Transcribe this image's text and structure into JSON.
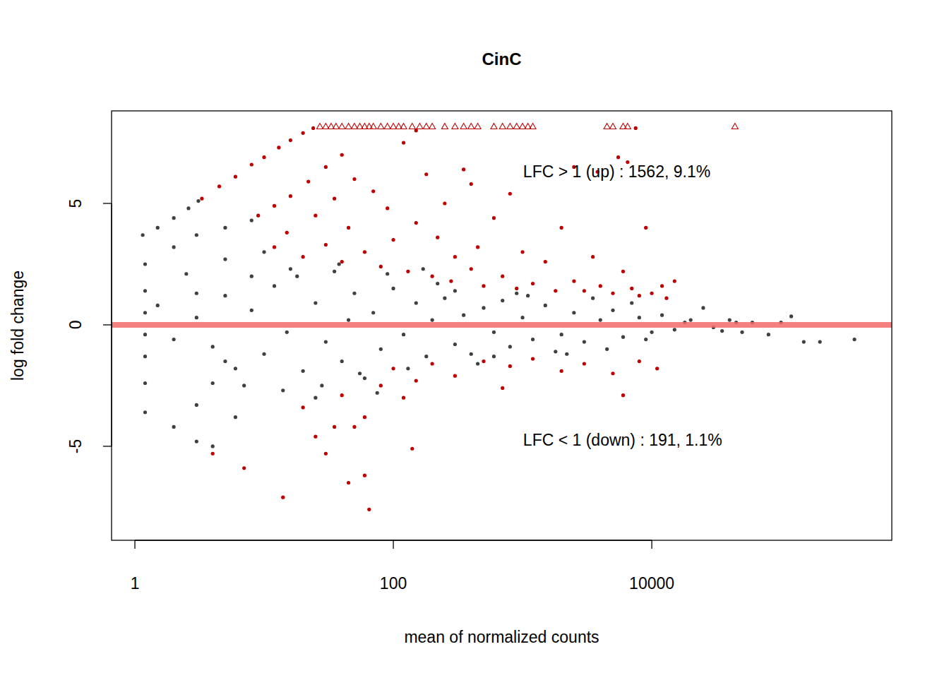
{
  "chart_data": {
    "type": "scatter",
    "title": "CinC",
    "x_label": "mean of normalized counts",
    "y_label": "log fold change",
    "log": "x",
    "xlim": [
      0.66,
      720000
    ],
    "ylim": [
      -8.87,
      8.81
    ],
    "xticks": [
      1,
      100,
      10000
    ],
    "yticks": [
      -5,
      0,
      5
    ],
    "reference_line": {
      "value": 0,
      "color": "#f26a6a"
    },
    "annotations": [
      {
        "text": "LFC > 1 (up) : 1562, 9.1%",
        "x": 1010,
        "y": 6.3
      },
      {
        "text": "LFC < 1 (down) : 191, 1.1%",
        "x": 1010,
        "y": -4.75
      }
    ],
    "series": [
      {
        "color": "#404040",
        "marker": "circle",
        "x": [
          1.15,
          1.5,
          2.0,
          2.6,
          3.1,
          1.2,
          2.0,
          3.0,
          5.0,
          8.0,
          1.2,
          2.5,
          5,
          10,
          1.2,
          3,
          8,
          1.2,
          2.0,
          3.0,
          4.0,
          1.2,
          3,
          6,
          1.2,
          4,
          1.2,
          5,
          1.5,
          2,
          3,
          4,
          5,
          6,
          8,
          10,
          12,
          15,
          18,
          20,
          25,
          30,
          35,
          40,
          45,
          50,
          60,
          70,
          80,
          100,
          120,
          150,
          180,
          200,
          250,
          300,
          350,
          400,
          500,
          600,
          700,
          800,
          1000,
          1200,
          1500,
          2000,
          2500,
          3000,
          4000,
          5000,
          6000,
          8000,
          10000,
          12000,
          15000,
          20000,
          25000,
          30000,
          40000,
          50000,
          60000,
          80000,
          120000,
          200000,
          370000,
          150000,
          100000,
          45000,
          35000,
          18000,
          9000,
          7000,
          3500,
          1800,
          900,
          450,
          220,
          130,
          90,
          55,
          28,
          16,
          14,
          7,
          25,
          300,
          600,
          1100,
          2200,
          4500,
          170,
          75,
          38
        ],
        "values": [
          3.7,
          4.0,
          4.4,
          4.8,
          5.1,
          2.5,
          3.2,
          3.7,
          4.0,
          4.3,
          1.4,
          2.1,
          2.7,
          3.0,
          0.5,
          1.3,
          2.0,
          -3.6,
          -4.2,
          -4.8,
          -5.0,
          -2.4,
          -3.3,
          -3.8,
          -1.3,
          -2.4,
          -0.4,
          -1.5,
          0.8,
          -0.6,
          0.3,
          -0.9,
          1.2,
          -1.8,
          0.6,
          -1.2,
          1.6,
          -0.3,
          2.0,
          -1.9,
          0.9,
          -0.7,
          2.2,
          -1.5,
          0.2,
          1.3,
          -2.2,
          0.5,
          -1.0,
          1.5,
          -0.4,
          0.9,
          -1.3,
          0.2,
          1.1,
          -0.8,
          0.4,
          -1.2,
          0.7,
          -0.3,
          1.0,
          -0.9,
          0.3,
          -0.6,
          0.8,
          -0.4,
          0.5,
          -0.7,
          0.2,
          0.6,
          -0.5,
          0.3,
          -0.3,
          0.4,
          -0.2,
          0.2,
          0.7,
          -0.1,
          0.2,
          -0.3,
          0.1,
          -0.4,
          0.35,
          -0.7,
          -0.6,
          -0.7,
          0.1,
          0.1,
          -0.25,
          0.1,
          -0.6,
          0.9,
          1.1,
          -1.1,
          1.3,
          -1.6,
          1.7,
          -1.8,
          2.1,
          -2.0,
          -2.5,
          2.3,
          -2.7,
          -2.5,
          -3.0,
          1.4,
          -1.3,
          1.2,
          -1.2,
          -1.0,
          2.3,
          -2.8,
          2.5
        ]
      },
      {
        "color": "#c00000",
        "marker": "circle",
        "x": [
          3.3,
          4.5,
          6,
          8,
          10,
          13,
          16,
          20,
          24,
          9,
          12,
          16,
          22,
          30,
          40,
          12,
          15,
          20,
          25,
          30,
          35,
          40,
          45,
          50,
          60,
          70,
          80,
          90,
          100,
          120,
          130,
          150,
          180,
          200,
          220,
          250,
          280,
          300,
          350,
          400,
          450,
          500,
          600,
          700,
          800,
          900,
          1000,
          1200,
          1500,
          1800,
          2000,
          2500,
          3000,
          3500,
          4000,
          5000,
          6000,
          7000,
          8000,
          10000,
          12000,
          6500,
          5500,
          3800,
          9000,
          15000,
          13000,
          150,
          7500,
          2500,
          400,
          4,
          7,
          14,
          20,
          25,
          30,
          35,
          40,
          45,
          60,
          65,
          60,
          80,
          100,
          140,
          120,
          200,
          300,
          500,
          800,
          1200,
          2000,
          3000,
          5000,
          8000,
          11000,
          6000,
          700,
          150,
          50
        ],
        "values": [
          5.2,
          5.7,
          6.1,
          6.6,
          6.9,
          7.3,
          7.6,
          7.9,
          8.1,
          4.5,
          4.9,
          5.3,
          5.9,
          6.5,
          7.0,
          3.2,
          3.8,
          2.8,
          4.5,
          3.3,
          5.2,
          2.6,
          4.0,
          6.0,
          3.0,
          5.5,
          2.4,
          4.8,
          3.5,
          7.5,
          2.2,
          4.2,
          6.2,
          2.0,
          3.6,
          5.0,
          1.8,
          2.8,
          6.4,
          2.3,
          3.2,
          1.6,
          4.4,
          2.0,
          5.4,
          1.5,
          3.0,
          1.7,
          2.6,
          1.4,
          4.0,
          1.8,
          1.4,
          2.8,
          1.6,
          1.3,
          2.2,
          1.5,
          1.2,
          1.3,
          1.6,
          6.7,
          6.9,
          6.3,
          4.0,
          1.8,
          1.1,
          8.0,
          8.1,
          6.5,
          5.8,
          -5.3,
          -5.9,
          -7.1,
          -3.4,
          -4.6,
          -5.3,
          -4.2,
          -2.9,
          -6.5,
          -3.8,
          -7.6,
          -6.2,
          -2.5,
          -1.8,
          -5.1,
          -3.0,
          -1.6,
          -2.1,
          -1.5,
          -1.7,
          -1.4,
          -1.9,
          -1.6,
          -2.0,
          -1.5,
          -1.8,
          -2.9,
          -2.6,
          -2.3,
          -4.2
        ]
      },
      {
        "color": "#c00000",
        "marker": "triangle",
        "x": [
          27,
          30,
          33,
          36,
          40,
          45,
          50,
          55,
          60,
          65,
          70,
          80,
          90,
          100,
          110,
          120,
          140,
          160,
          180,
          200,
          250,
          300,
          350,
          400,
          450,
          600,
          700,
          800,
          900,
          1000,
          1100,
          1200,
          4500,
          5000,
          6000,
          6500,
          44000
        ],
        "values": [
          8.17,
          8.17,
          8.17,
          8.17,
          8.17,
          8.17,
          8.17,
          8.17,
          8.17,
          8.17,
          8.17,
          8.17,
          8.17,
          8.17,
          8.17,
          8.17,
          8.17,
          8.17,
          8.17,
          8.17,
          8.17,
          8.17,
          8.17,
          8.17,
          8.17,
          8.17,
          8.17,
          8.17,
          8.17,
          8.17,
          8.17,
          8.17,
          8.17,
          8.17,
          8.17,
          8.17,
          8.17
        ]
      }
    ]
  }
}
